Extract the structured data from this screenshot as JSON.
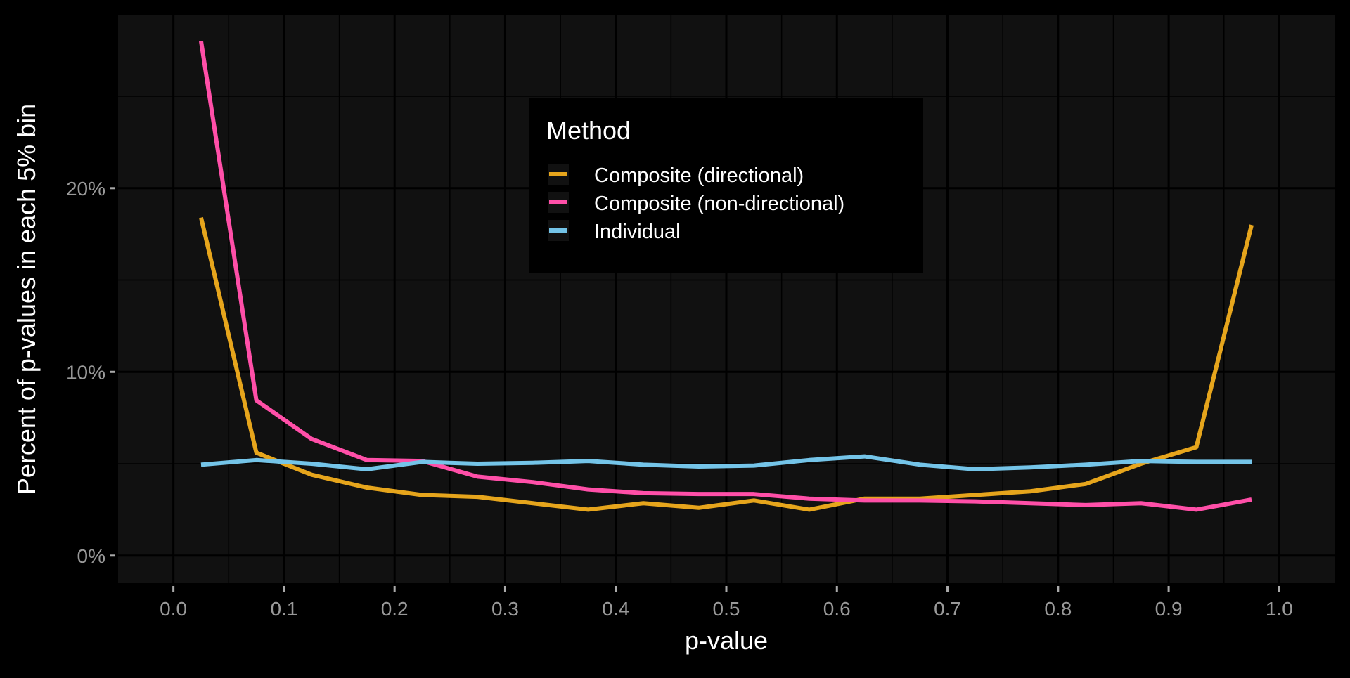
{
  "chart_data": {
    "type": "line",
    "title": "",
    "xlabel": "p-value",
    "ylabel": "Percent of p-values in each 5% bin",
    "xlim": [
      -0.05,
      1.05
    ],
    "ylim": [
      -1.5,
      29.4
    ],
    "x_ticks": [
      "0.0",
      "0.1",
      "0.2",
      "0.3",
      "0.4",
      "0.5",
      "0.6",
      "0.7",
      "0.8",
      "0.9",
      "1.0"
    ],
    "y_ticks": [
      "0%",
      "10%",
      "20%"
    ],
    "grid": true,
    "legend": {
      "title": "Method",
      "placement": "top-center"
    },
    "x": [
      0.025,
      0.075,
      0.125,
      0.175,
      0.225,
      0.275,
      0.325,
      0.375,
      0.425,
      0.475,
      0.525,
      0.575,
      0.625,
      0.675,
      0.725,
      0.775,
      0.825,
      0.875,
      0.925,
      0.975
    ],
    "series": [
      {
        "name": "Composite (directional)",
        "color": "#E6A51C",
        "values": [
          18.4,
          5.6,
          4.4,
          3.7,
          3.3,
          3.2,
          2.85,
          2.5,
          2.85,
          2.6,
          3.0,
          2.5,
          3.1,
          3.1,
          3.3,
          3.5,
          3.9,
          5.0,
          5.9,
          18.0
        ]
      },
      {
        "name": "Composite (non-directional)",
        "color": "#FF4FA8",
        "values": [
          28.0,
          8.45,
          6.35,
          5.2,
          5.15,
          4.3,
          4.0,
          3.6,
          3.4,
          3.35,
          3.35,
          3.1,
          3.0,
          3.0,
          2.95,
          2.85,
          2.75,
          2.85,
          2.5,
          3.05
        ]
      },
      {
        "name": "Individual",
        "color": "#74C4E8",
        "values": [
          4.95,
          5.2,
          5.0,
          4.7,
          5.1,
          5.0,
          5.05,
          5.15,
          4.95,
          4.85,
          4.9,
          5.2,
          5.4,
          4.95,
          4.7,
          4.8,
          4.95,
          5.15,
          5.1,
          5.1
        ]
      }
    ]
  }
}
